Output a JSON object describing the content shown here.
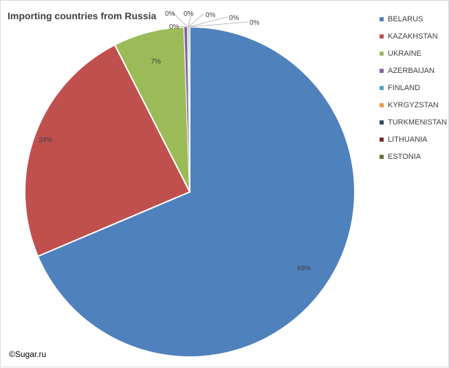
{
  "chart_data": {
    "type": "pie",
    "title": "Importing countries from Russia",
    "legend_position": "right",
    "slices": [
      {
        "name": "BELARUS",
        "value": 69,
        "label": "69%",
        "color": "#4F81BD"
      },
      {
        "name": "KAZAKHSTAN",
        "value": 24,
        "label": "24%",
        "color": "#C0504D"
      },
      {
        "name": "UKRAINE",
        "value": 7,
        "label": "7%",
        "color": "#9BBB59"
      },
      {
        "name": "AZERBAIJAN",
        "value": 0.3,
        "label": "0%",
        "color": "#8064A2"
      },
      {
        "name": "FINLAND",
        "value": 0.05,
        "label": "0%",
        "color": "#4BACC6"
      },
      {
        "name": "KYRGYZSTAN",
        "value": 0.05,
        "label": "0%",
        "color": "#F79646"
      },
      {
        "name": "TURKMENISTAN",
        "value": 0.05,
        "label": "0%",
        "color": "#2C4D75"
      },
      {
        "name": "LITHUANIA",
        "value": 0.05,
        "label": "0%",
        "color": "#772C2A"
      },
      {
        "name": "ESTONIA",
        "value": 0.05,
        "label": "0%",
        "color": "#5F7530"
      }
    ]
  },
  "copyright": "©Sugar.ru"
}
